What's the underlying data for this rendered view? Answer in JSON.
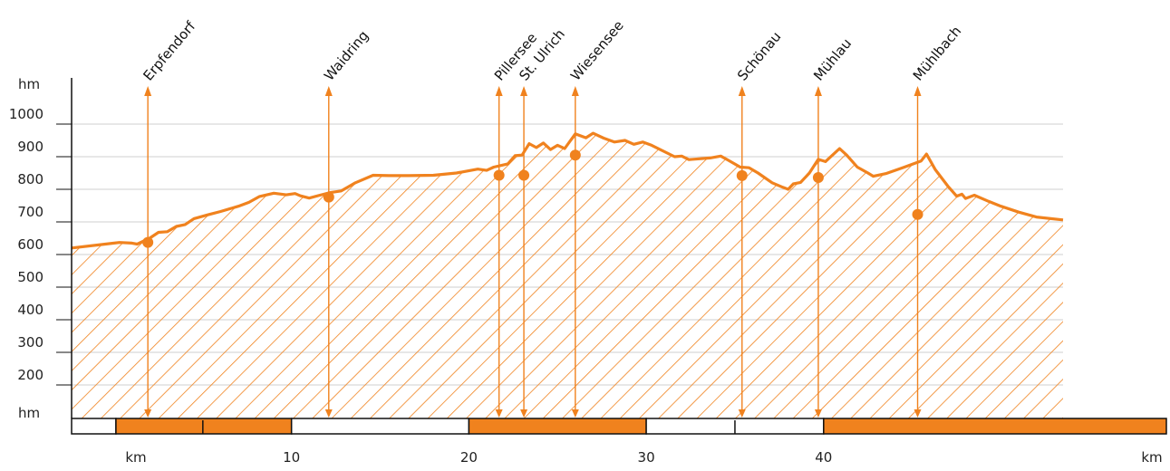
{
  "chart_data": {
    "type": "area",
    "y_unit_top": "hm",
    "y_unit_bottom": "hm",
    "x_unit_left": "km",
    "x_unit_right": "km",
    "xlim": [
      -3.4,
      52.5
    ],
    "ylim": [
      0,
      1000
    ],
    "y_ticks": [
      {
        "value": 1000,
        "label": "1000"
      },
      {
        "value": 900,
        "label": "900"
      },
      {
        "value": 800,
        "label": "800"
      },
      {
        "value": 700,
        "label": "700"
      },
      {
        "value": 600,
        "label": "600"
      },
      {
        "value": 500,
        "label": "500"
      },
      {
        "value": 400,
        "label": "400"
      },
      {
        "value": 300,
        "label": "300"
      },
      {
        "value": 200,
        "label": "200"
      }
    ],
    "x_ticks": [
      {
        "value": 10,
        "label": "10"
      },
      {
        "value": 20,
        "label": "20"
      },
      {
        "value": 30,
        "label": "30"
      },
      {
        "value": 40,
        "label": "40"
      }
    ],
    "colors": {
      "accent": "#f0821e",
      "axis": "#111111",
      "grid": "#cfcfcf"
    },
    "profile": [
      [
        -3.4,
        620
      ],
      [
        -1.5,
        632
      ],
      [
        -0.7,
        637
      ],
      [
        0.0,
        635
      ],
      [
        0.3,
        632
      ],
      [
        1.0,
        650
      ],
      [
        1.5,
        668
      ],
      [
        2.0,
        670
      ],
      [
        2.5,
        686
      ],
      [
        3.0,
        692
      ],
      [
        3.5,
        710
      ],
      [
        4.3,
        722
      ],
      [
        5.0,
        732
      ],
      [
        6.0,
        748
      ],
      [
        6.6,
        760
      ],
      [
        7.2,
        778
      ],
      [
        8.0,
        788
      ],
      [
        8.7,
        783
      ],
      [
        9.2,
        787
      ],
      [
        9.5,
        780
      ],
      [
        10.0,
        773
      ],
      [
        10.6,
        782
      ],
      [
        11.2,
        790
      ],
      [
        11.8,
        795
      ],
      [
        12.6,
        820
      ],
      [
        13.6,
        843
      ],
      [
        14.5,
        842
      ],
      [
        15.6,
        842
      ],
      [
        17.0,
        843
      ],
      [
        18.3,
        850
      ],
      [
        19.5,
        862
      ],
      [
        20.0,
        858
      ],
      [
        20.4,
        868
      ],
      [
        21.2,
        878
      ],
      [
        21.6,
        903
      ],
      [
        22.0,
        905
      ],
      [
        22.4,
        940
      ],
      [
        22.8,
        928
      ],
      [
        23.2,
        942
      ],
      [
        23.6,
        922
      ],
      [
        24.0,
        935
      ],
      [
        24.4,
        925
      ],
      [
        25.0,
        970
      ],
      [
        25.6,
        958
      ],
      [
        26.0,
        972
      ],
      [
        26.6,
        957
      ],
      [
        27.2,
        945
      ],
      [
        27.8,
        950
      ],
      [
        28.3,
        938
      ],
      [
        28.8,
        945
      ],
      [
        29.3,
        935
      ],
      [
        30.6,
        900
      ],
      [
        31.0,
        902
      ],
      [
        31.4,
        891
      ],
      [
        32.6,
        896
      ],
      [
        33.2,
        902
      ],
      [
        33.6,
        890
      ],
      [
        34.3,
        868
      ],
      [
        34.8,
        866
      ],
      [
        35.3,
        850
      ],
      [
        36.1,
        820
      ],
      [
        36.7,
        806
      ],
      [
        37.0,
        800
      ],
      [
        37.3,
        817
      ],
      [
        37.7,
        821
      ],
      [
        38.2,
        850
      ],
      [
        38.7,
        892
      ],
      [
        39.1,
        885
      ],
      [
        39.9,
        925
      ],
      [
        40.3,
        905
      ],
      [
        40.9,
        868
      ],
      [
        41.5,
        850
      ],
      [
        41.8,
        840
      ],
      [
        42.5,
        848
      ],
      [
        43.5,
        867
      ],
      [
        44.5,
        887
      ],
      [
        44.8,
        908
      ],
      [
        45.3,
        860
      ],
      [
        46.0,
        810
      ],
      [
        46.5,
        779
      ],
      [
        46.8,
        785
      ],
      [
        47.0,
        772
      ],
      [
        47.5,
        782
      ],
      [
        48.3,
        763
      ],
      [
        49.0,
        748
      ],
      [
        50.0,
        730
      ],
      [
        51.0,
        715
      ],
      [
        52.5,
        706
      ]
    ],
    "places": [
      {
        "name": "Erpfendorf",
        "x": 0.9,
        "y": 637
      },
      {
        "name": "Waidring",
        "x": 11.1,
        "y": 776
      },
      {
        "name": "Pillersee",
        "x": 20.7,
        "y": 843
      },
      {
        "name": "St. Ulrich",
        "x": 22.1,
        "y": 843
      },
      {
        "name": "Wiesensee",
        "x": 25.0,
        "y": 905
      },
      {
        "name": "Schönau",
        "x": 34.4,
        "y": 842
      },
      {
        "name": "Mühlau",
        "x": 38.7,
        "y": 836
      },
      {
        "name": "Mühlbach",
        "x": 44.3,
        "y": 723
      }
    ],
    "scale_bar": [
      {
        "from": -3.4,
        "to": -0.9,
        "filled": false
      },
      {
        "from": -0.9,
        "to": 9.0,
        "filled": true
      },
      {
        "from": 9.0,
        "to": 19.0,
        "filled": false
      },
      {
        "from": 19.0,
        "to": 29.0,
        "filled": true
      },
      {
        "from": 29.0,
        "to": 39.0,
        "filled": false
      },
      {
        "from": 39.0,
        "to": 52.5,
        "filled": true
      }
    ]
  }
}
